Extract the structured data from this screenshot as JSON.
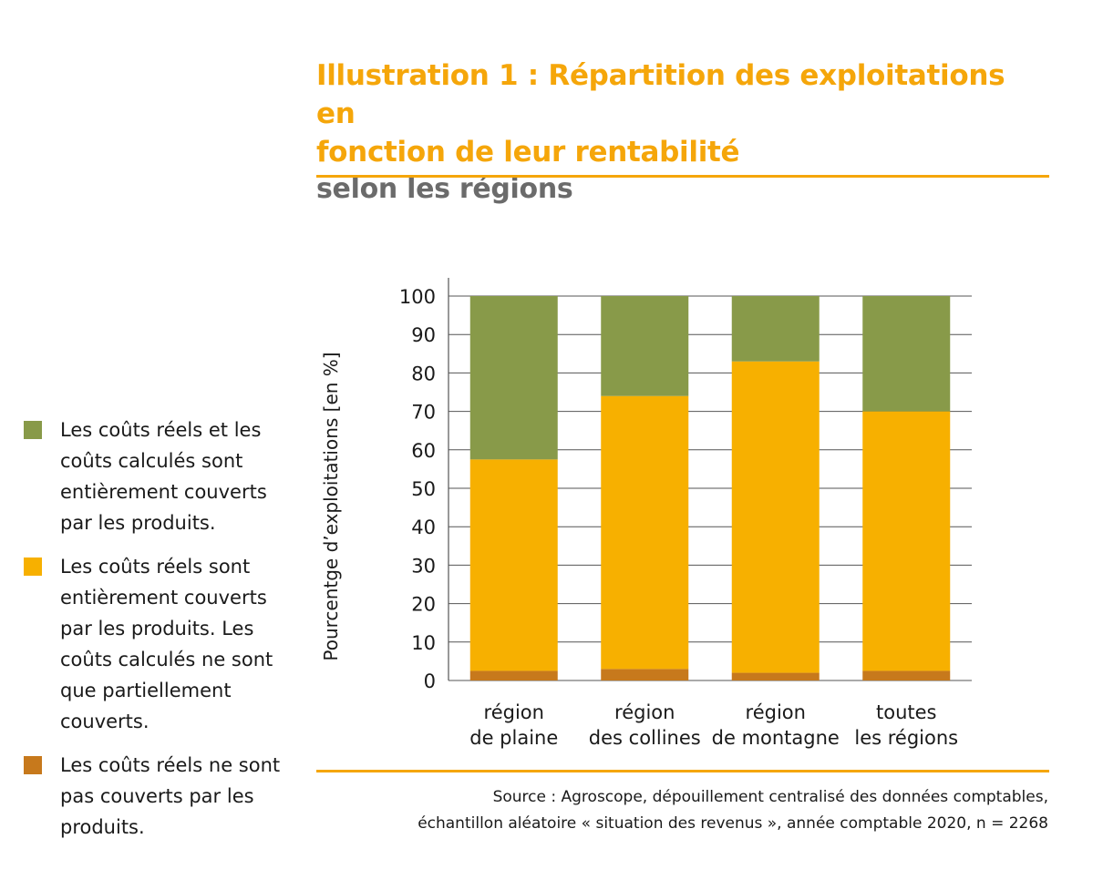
{
  "header": {
    "title_lines": [
      "Illustration 1 : Répartition des exploitations en",
      "fonction de leur rentabilité"
    ],
    "subtitle": "selon les régions"
  },
  "colors": {
    "accent": "#f5a60a",
    "subtitle": "#6b6b6b",
    "rule": "#f5a60a",
    "green": "#889a49",
    "yellow": "#f7b000",
    "brown": "#c7791c",
    "grid": "#555555"
  },
  "legend": [
    {
      "label_lines": [
        "Les coûts réels et les",
        "coûts calculés sont",
        "entièrement couverts",
        "par les produits."
      ],
      "color": "#889a49"
    },
    {
      "label_lines": [
        "Les coûts réels sont",
        "entièrement couverts",
        "par les produits. Les",
        "coûts calculés ne sont",
        "que partiellement",
        "couverts."
      ],
      "color": "#f7b000"
    },
    {
      "label_lines": [
        "Les coûts réels ne sont",
        "pas couverts par les",
        "produits."
      ],
      "color": "#c7791c"
    }
  ],
  "chart_data": {
    "type": "bar",
    "stacked": true,
    "categories": [
      [
        "région",
        "de plaine"
      ],
      [
        "région",
        "des collines"
      ],
      [
        "région",
        "de montagne"
      ],
      [
        "toutes",
        "les régions"
      ]
    ],
    "series": [
      {
        "name": "Les coûts réels ne sont pas couverts par les produits.",
        "color": "#c7791c",
        "values": [
          2.5,
          3,
          2,
          2.5
        ]
      },
      {
        "name": "Les coûts réels sont entièrement couverts par les produits. Les coûts calculés ne sont que partiellement couverts.",
        "color": "#f7b000",
        "values": [
          55,
          71,
          81,
          67.5
        ]
      },
      {
        "name": "Les coûts réels et les coûts calculés sont entièrement couverts par les produits.",
        "color": "#889a49",
        "values": [
          42.5,
          26,
          17,
          30
        ]
      }
    ],
    "ylabel": "Pourcentge d’exploitations  [en %]",
    "xlabel": "",
    "ylim": [
      0,
      100
    ],
    "yticks": [
      "0",
      "10",
      "20",
      "30",
      "40",
      "50",
      "60",
      "70",
      "80",
      "90",
      "100"
    ],
    "grid": true
  },
  "source": {
    "lines": [
      "Source : Agroscope, dépouillement centralisé des données comptables,",
      "échantillon aléatoire « situation des revenus », année comptable 2020, n = 2268"
    ]
  }
}
